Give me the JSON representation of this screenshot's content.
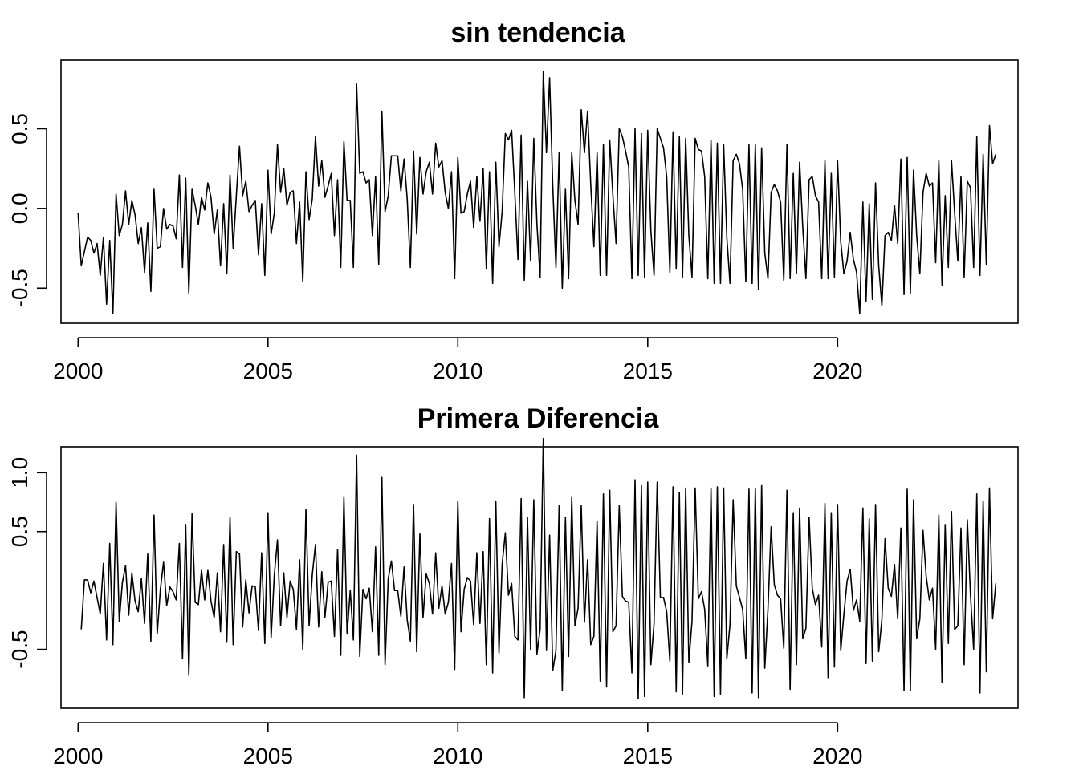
{
  "colors": {
    "line": "#000000",
    "frame": "#000000",
    "background": "#ffffff"
  },
  "chart_data": [
    {
      "type": "line",
      "title": "sin tendencia",
      "xlabel": "",
      "ylabel": "",
      "xlim": [
        1999.55,
        2024.75
      ],
      "ylim": [
        -0.72,
        0.93
      ],
      "x_ticks": [
        "2000",
        "2005",
        "2010",
        "2015",
        "2020"
      ],
      "y_ticks": [
        "-0.5",
        "0.0",
        "0.5"
      ],
      "grid": false,
      "series": [
        {
          "x_start": 2000.0,
          "x_step": 0.08333,
          "values": [
            -0.03,
            -0.36,
            -0.27,
            -0.18,
            -0.2,
            -0.28,
            -0.22,
            -0.42,
            -0.18,
            -0.6,
            -0.2,
            -0.66,
            0.09,
            -0.17,
            -0.1,
            0.11,
            -0.1,
            0.05,
            -0.04,
            -0.22,
            -0.12,
            -0.4,
            -0.09,
            -0.52,
            0.12,
            -0.25,
            -0.24,
            0.0,
            -0.13,
            -0.1,
            -0.11,
            -0.19,
            0.21,
            -0.37,
            0.19,
            -0.53,
            0.12,
            0.02,
            -0.1,
            0.07,
            -0.01,
            0.16,
            0.07,
            -0.16,
            -0.01,
            -0.36,
            0.03,
            -0.41,
            0.21,
            -0.25,
            0.08,
            0.39,
            0.08,
            0.17,
            -0.02,
            0.02,
            0.05,
            -0.29,
            0.03,
            -0.42,
            0.24,
            -0.16,
            -0.03,
            0.4,
            0.1,
            0.25,
            0.02,
            0.1,
            0.11,
            -0.22,
            0.04,
            -0.46,
            0.23,
            -0.07,
            0.06,
            0.45,
            0.14,
            0.3,
            0.07,
            0.14,
            0.22,
            -0.17,
            0.18,
            -0.37,
            0.42,
            0.05,
            0.05,
            -0.37,
            0.78,
            0.22,
            0.23,
            0.16,
            0.18,
            -0.17,
            0.2,
            -0.35,
            0.61,
            -0.02,
            0.08,
            0.33,
            0.33,
            0.33,
            0.11,
            0.31,
            0.06,
            -0.37,
            0.36,
            -0.16,
            0.32,
            0.09,
            0.23,
            0.29,
            0.09,
            0.41,
            0.26,
            0.3,
            0.1,
            0.0,
            0.23,
            -0.44,
            0.32,
            -0.03,
            -0.02,
            0.09,
            0.17,
            -0.12,
            0.2,
            -0.08,
            0.25,
            -0.38,
            0.23,
            -0.47,
            0.29,
            -0.24,
            -0.02,
            0.47,
            0.43,
            0.49,
            0.1,
            -0.32,
            0.46,
            -0.45,
            0.17,
            -0.33,
            0.44,
            -0.1,
            -0.43,
            0.86,
            0.35,
            0.82,
            0.14,
            -0.37,
            0.35,
            -0.5,
            0.12,
            -0.44,
            0.35,
            0.05,
            -0.1,
            0.62,
            0.35,
            0.61,
            0.15,
            -0.24,
            0.35,
            -0.42,
            0.4,
            -0.42,
            0.43,
            0.08,
            -0.22,
            0.5,
            0.45,
            0.36,
            0.26,
            -0.44,
            0.5,
            -0.42,
            0.47,
            -0.43,
            0.49,
            -0.14,
            -0.42,
            0.5,
            0.44,
            0.38,
            0.2,
            -0.4,
            0.48,
            -0.38,
            0.45,
            -0.43,
            0.44,
            -0.17,
            -0.43,
            0.44,
            0.37,
            0.36,
            0.2,
            -0.44,
            0.43,
            -0.47,
            0.41,
            -0.47,
            0.4,
            -0.18,
            -0.47,
            0.3,
            0.34,
            0.28,
            0.12,
            -0.46,
            0.4,
            -0.47,
            0.4,
            -0.51,
            0.38,
            -0.28,
            -0.44,
            0.1,
            0.15,
            0.11,
            0.04,
            -0.45,
            0.4,
            -0.44,
            0.22,
            -0.41,
            0.29,
            -0.12,
            -0.44,
            0.18,
            0.2,
            0.08,
            0.04,
            -0.44,
            0.3,
            -0.44,
            0.22,
            -0.43,
            0.3,
            -0.21,
            -0.41,
            -0.33,
            -0.15,
            -0.32,
            -0.4,
            -0.66,
            0.04,
            -0.58,
            0.03,
            -0.57,
            0.16,
            -0.36,
            -0.61,
            -0.17,
            -0.15,
            -0.2,
            0.02,
            -0.22,
            0.31,
            -0.54,
            0.32,
            -0.53,
            0.24,
            -0.17,
            -0.41,
            0.1,
            0.22,
            0.14,
            0.16,
            -0.34,
            0.3,
            -0.48,
            0.08,
            -0.37,
            0.3,
            -0.03,
            -0.33,
            0.2,
            -0.43,
            0.17,
            0.13,
            -0.37,
            0.45,
            -0.42,
            0.34,
            -0.35,
            0.52,
            0.28,
            0.34
          ]
        }
      ]
    },
    {
      "type": "line",
      "title": "Primera Diferencia",
      "xlabel": "",
      "ylabel": "",
      "xlim": [
        1999.55,
        2024.75
      ],
      "ylim": [
        -1.0,
        1.22
      ],
      "x_ticks": [
        "2000",
        "2005",
        "2010",
        "2015",
        "2020"
      ],
      "y_ticks": [
        "-0.5",
        "0.5",
        "1.0"
      ],
      "grid": false,
      "series": [
        {
          "x_start": 2000.08333,
          "x_step": 0.08333,
          "values": [
            -0.33,
            0.09,
            0.09,
            -0.02,
            0.08,
            -0.06,
            -0.2,
            0.23,
            -0.42,
            0.4,
            -0.46,
            0.75,
            -0.26,
            0.07,
            0.21,
            -0.21,
            0.15,
            -0.09,
            -0.18,
            0.1,
            -0.28,
            0.31,
            -0.43,
            0.64,
            -0.37,
            0.01,
            0.24,
            -0.13,
            0.03,
            -0.01,
            -0.08,
            0.4,
            -0.58,
            0.56,
            -0.72,
            0.65,
            -0.1,
            -0.12,
            0.17,
            -0.08,
            0.17,
            -0.09,
            -0.23,
            0.15,
            -0.35,
            0.39,
            -0.44,
            0.62,
            -0.46,
            0.33,
            0.31,
            -0.31,
            0.09,
            -0.19,
            0.04,
            0.03,
            -0.34,
            0.32,
            -0.45,
            0.66,
            -0.4,
            0.13,
            0.43,
            -0.3,
            0.15,
            -0.23,
            0.08,
            0.01,
            -0.33,
            0.26,
            -0.5,
            0.69,
            -0.3,
            0.13,
            0.39,
            -0.31,
            0.16,
            -0.23,
            0.07,
            0.08,
            -0.39,
            0.35,
            -0.55,
            0.79,
            -0.37,
            0.0,
            -0.42,
            1.15,
            -0.56,
            0.01,
            -0.07,
            0.02,
            -0.35,
            0.37,
            -0.55,
            0.96,
            -0.63,
            0.1,
            0.25,
            0.0,
            0.0,
            -0.22,
            0.2,
            -0.25,
            -0.43,
            0.73,
            -0.52,
            0.48,
            -0.23,
            0.14,
            0.06,
            -0.2,
            0.32,
            -0.15,
            0.04,
            -0.2,
            -0.1,
            0.23,
            -0.67,
            0.76,
            -0.35,
            0.01,
            0.11,
            0.08,
            -0.29,
            0.32,
            -0.28,
            0.33,
            -0.63,
            0.61,
            -0.7,
            0.76,
            -0.53,
            0.22,
            0.49,
            -0.04,
            0.06,
            -0.39,
            -0.42,
            0.78,
            -0.91,
            0.62,
            -0.5,
            0.77,
            -0.54,
            -0.33,
            1.29,
            -0.51,
            0.47,
            -0.68,
            -0.51,
            0.72,
            -0.85,
            0.62,
            -0.56,
            0.79,
            -0.3,
            -0.15,
            0.72,
            -0.27,
            0.26,
            -0.46,
            -0.39,
            0.59,
            -0.77,
            0.82,
            -0.82,
            0.85,
            -0.35,
            -0.3,
            0.72,
            -0.05,
            -0.09,
            -0.1,
            -0.7,
            0.94,
            -0.92,
            0.89,
            -0.9,
            0.92,
            -0.63,
            -0.28,
            0.92,
            -0.06,
            -0.06,
            -0.18,
            -0.6,
            0.88,
            -0.86,
            0.83,
            -0.88,
            0.87,
            -0.61,
            -0.26,
            0.87,
            -0.07,
            -0.01,
            -0.16,
            -0.64,
            0.87,
            -0.9,
            0.88,
            -0.88,
            0.87,
            -0.58,
            -0.29,
            0.77,
            0.04,
            -0.06,
            -0.16,
            -0.58,
            0.86,
            -0.87,
            0.87,
            -0.91,
            0.89,
            -0.66,
            -0.16,
            0.54,
            0.05,
            -0.04,
            -0.07,
            -0.49,
            0.85,
            -0.84,
            0.66,
            -0.63,
            0.7,
            -0.41,
            -0.32,
            0.62,
            0.02,
            -0.12,
            -0.04,
            -0.48,
            0.74,
            -0.74,
            0.66,
            -0.65,
            0.73,
            -0.51,
            -0.2,
            0.08,
            0.18,
            -0.17,
            -0.08,
            -0.26,
            0.7,
            -0.62,
            0.61,
            -0.6,
            0.73,
            -0.52,
            -0.25,
            0.44,
            0.02,
            -0.05,
            0.22,
            -0.24,
            0.53,
            -0.85,
            0.86,
            -0.85,
            0.77,
            -0.41,
            -0.24,
            0.51,
            0.12,
            -0.08,
            0.02,
            -0.5,
            0.64,
            -0.78,
            0.56,
            -0.45,
            0.67,
            -0.33,
            -0.3,
            0.53,
            -0.63,
            0.6,
            -0.04,
            -0.5,
            0.82,
            -0.87,
            0.76,
            -0.69,
            0.87,
            -0.24,
            0.06
          ]
        }
      ]
    }
  ]
}
